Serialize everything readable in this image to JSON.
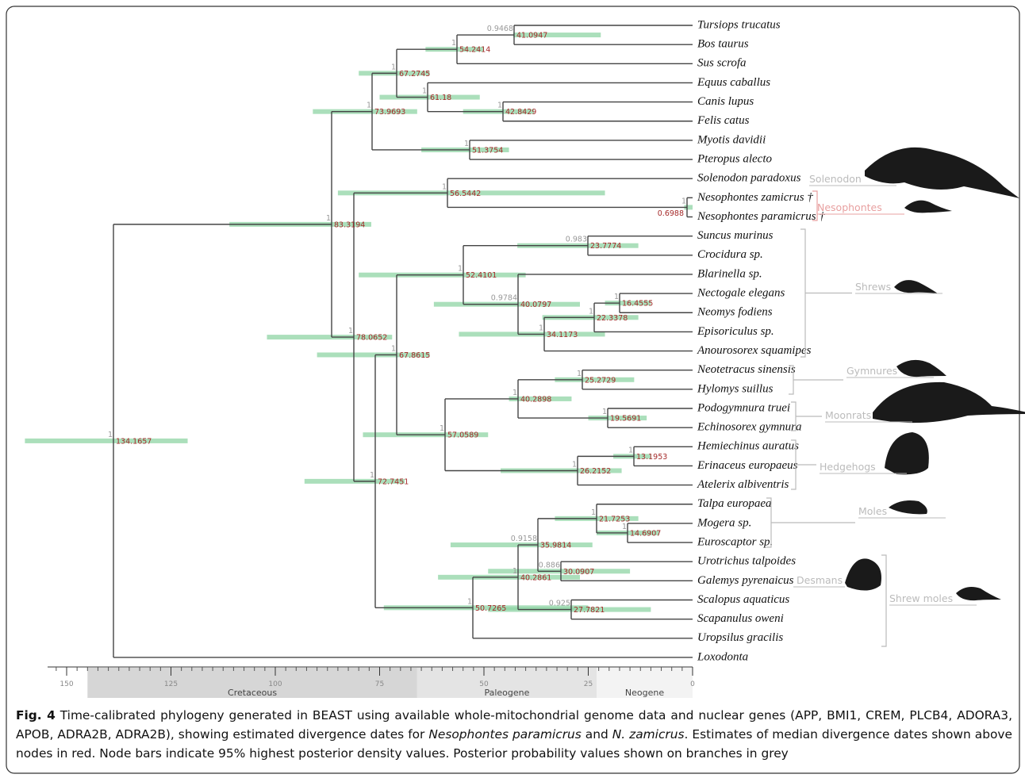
{
  "tree": {
    "leaves": [
      "Tursiops trucatus",
      "Bos taurus",
      "Sus scrofa",
      "Equus caballus",
      "Canis lupus",
      "Felis catus",
      "Myotis davidii",
      "Pteropus alecto",
      "Solenodon paradoxus",
      "Nesophontes zamicrus †",
      "Nesophontes paramicrus †",
      "Suncus murinus",
      "Crocidura sp.",
      "Blarinella sp.",
      "Nectogale elegans",
      "Neomys fodiens",
      "Episoriculus sp.",
      "Anourosorex squamipes",
      "Neotetracus sinensis",
      "Hylomys suillus",
      "Podogymnura truei",
      "Echinosorex gymnura",
      "Hemiechinus auratus",
      "Erinaceus europaeus",
      "Atelerix albiventris",
      "Talpa europaea",
      "Mogera sp.",
      "Euroscaptor sp.",
      "Urotrichus talpoides",
      "Galemys pyrenaicus",
      "Scalopus aquaticus",
      "Scapanulus oweni",
      "Uropsilus gracilis",
      "Loxodonta"
    ],
    "nodes": [
      {
        "age": 41.0947,
        "pp": 0.9468,
        "hpd": [
          22,
          43
        ]
      },
      {
        "age": 54.2414,
        "pp": 1,
        "hpd": [
          50,
          64
        ]
      },
      {
        "age": 42.8429,
        "pp": 1,
        "hpd": [
          38,
          55
        ]
      },
      {
        "age": 61.18,
        "pp": 1,
        "hpd": [
          51,
          75
        ]
      },
      {
        "age": 67.2745,
        "pp": 1,
        "hpd": [
          63,
          80
        ]
      },
      {
        "age": 51.3754,
        "pp": 1,
        "hpd": [
          44,
          65
        ]
      },
      {
        "age": 73.9693,
        "pp": 1,
        "hpd": [
          66,
          91
        ]
      },
      {
        "age": 0.6988,
        "pp": 1,
        "hpd": [
          0,
          2
        ]
      },
      {
        "age": 56.5442,
        "pp": 1,
        "hpd": [
          21,
          85
        ]
      },
      {
        "age": 23.7774,
        "pp": 0.983,
        "hpd": [
          13,
          42
        ]
      },
      {
        "age": 16.4555,
        "pp": 1,
        "hpd": [
          10,
          21
        ]
      },
      {
        "age": 22.3378,
        "pp": 1,
        "hpd": [
          13,
          36
        ]
      },
      {
        "age": 34.1173,
        "pp": 1,
        "hpd": [
          21,
          56
        ]
      },
      {
        "age": 40.0797,
        "pp": 0.9784,
        "hpd": [
          27,
          62
        ]
      },
      {
        "age": 52.4101,
        "pp": 1,
        "hpd": [
          40,
          80
        ]
      },
      {
        "age": 25.2729,
        "pp": 1,
        "hpd": [
          14,
          33
        ]
      },
      {
        "age": 19.5691,
        "pp": 1,
        "hpd": [
          11,
          25
        ]
      },
      {
        "age": 40.2898,
        "pp": 1,
        "hpd": [
          29,
          44
        ]
      },
      {
        "age": 13.1953,
        "pp": 1,
        "hpd": [
          10,
          19
        ]
      },
      {
        "age": 26.2152,
        "pp": 1,
        "hpd": [
          17,
          46
        ]
      },
      {
        "age": 57.0589,
        "pp": 1,
        "hpd": [
          49,
          79
        ]
      },
      {
        "age": 67.8615,
        "pp": 1,
        "hpd": [
          63,
          90
        ]
      },
      {
        "age": 14.6907,
        "pp": 1,
        "hpd": [
          8,
          23
        ]
      },
      {
        "age": 21.7253,
        "pp": 1,
        "hpd": [
          13,
          33
        ]
      },
      {
        "age": 30.0907,
        "pp": 0.886,
        "hpd": [
          15,
          49
        ]
      },
      {
        "age": 35.9814,
        "pp": 0.9158,
        "hpd": [
          24,
          58
        ]
      },
      {
        "age": 27.7821,
        "pp": 0.925,
        "hpd": [
          10,
          49
        ]
      },
      {
        "age": 40.2861,
        "pp": 1,
        "hpd": [
          27,
          61
        ]
      },
      {
        "age": 50.7265,
        "pp": 1,
        "hpd": [
          25,
          74
        ]
      },
      {
        "age": 72.7451,
        "pp": 1,
        "hpd": [
          69,
          93
        ]
      },
      {
        "age": 78.0652,
        "pp": 1,
        "hpd": [
          72,
          102
        ]
      },
      {
        "age": 83.3194,
        "pp": 1,
        "hpd": [
          77,
          111
        ]
      },
      {
        "age": 134.1657,
        "pp": 1,
        "hpd": [
          121,
          160
        ]
      }
    ],
    "clades": [
      "Solenodon",
      "Nesophontes",
      "Shrews",
      "Gymnures",
      "Moonrats",
      "Hedgehogs",
      "Moles",
      "Desmans",
      "Shrew moles"
    ]
  },
  "axis": {
    "xlim": [
      0,
      150
    ],
    "xticks": [
      150,
      125,
      100,
      75,
      50,
      25,
      0
    ],
    "periods": [
      {
        "name": "Cretaceous",
        "range": [
          145,
          66
        ]
      },
      {
        "name": "Paleogene",
        "range": [
          66,
          23
        ]
      },
      {
        "name": "Neogene",
        "range": [
          23,
          0
        ]
      }
    ]
  },
  "caption": {
    "label": "Fig. 4",
    "text_1": "Time-calibrated phylogeny generated in BEAST using available whole-mitochondrial genome data and nuclear genes (APP, BMI1, CREM, PLCB4, ADORA3, APOB, ADRA2B, ADRA2B), showing estimated divergence dates for",
    "species_1": "Nesophontes paramicrus",
    "text_2": "and",
    "species_2": "N. zamicrus",
    "text_3": ". Estimates of median divergence dates shown above nodes in red. Node bars indicate 95% highest posterior density values. Posterior probability values shown on branches in grey"
  }
}
